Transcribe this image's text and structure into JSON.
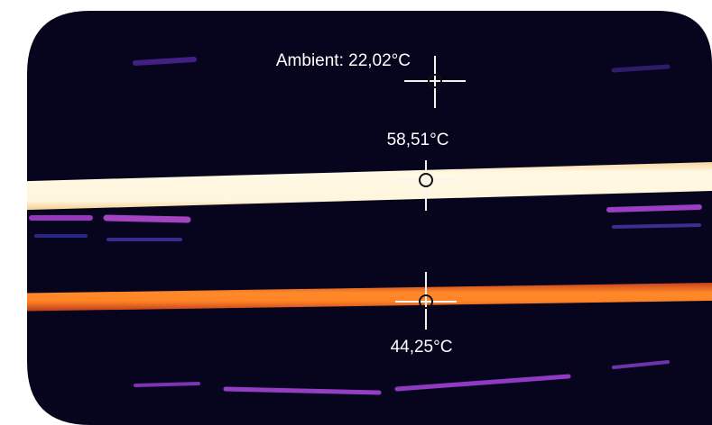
{
  "annotations": [
    {
      "text": "Ambient: 22,02°C"
    },
    {
      "text": "58,51°C"
    },
    {
      "text": "44,25°C"
    }
  ]
}
